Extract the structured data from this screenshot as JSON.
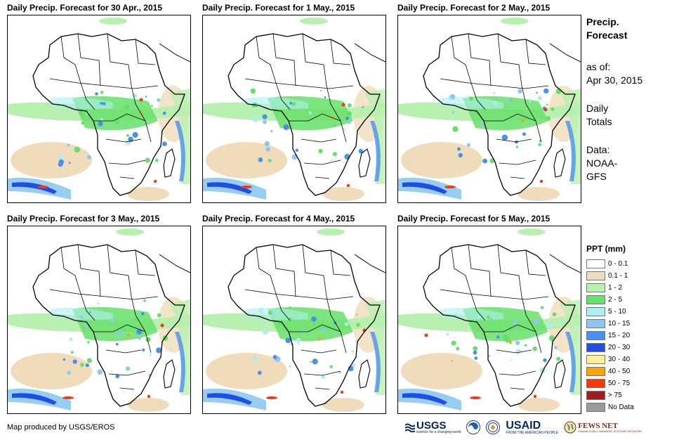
{
  "panels": [
    {
      "title": "Daily Precip. Forecast for 30 Apr., 2015"
    },
    {
      "title": "Daily Precip. Forecast for 1 May., 2015"
    },
    {
      "title": "Daily Precip. Forecast for 2 May., 2015"
    },
    {
      "title": "Daily Precip. Forecast for 3 May., 2015"
    },
    {
      "title": "Daily Precip. Forecast for 4 May., 2015"
    },
    {
      "title": "Daily Precip. Forecast for 5 May., 2015"
    }
  ],
  "sidebar": {
    "heading_line1": "Precip.",
    "heading_line2": "Forecast",
    "asof_label": "as of:",
    "asof_date": "Apr 30, 2015",
    "totals_line1": "Daily",
    "totals_line2": "Totals",
    "data_label": "Data:",
    "data_line1": "NOAA-",
    "data_line2": "GFS"
  },
  "legend": {
    "title": "PPT (mm)",
    "items": [
      {
        "label": "0 - 0.1",
        "color": "#ffffff"
      },
      {
        "label": "0.1 - 1",
        "color": "#f0dcba"
      },
      {
        "label": "1 - 2",
        "color": "#b8f0b0"
      },
      {
        "label": "2 - 5",
        "color": "#66e06a"
      },
      {
        "label": "5 - 10",
        "color": "#aeeef0"
      },
      {
        "label": "10 - 15",
        "color": "#8cc8f0"
      },
      {
        "label": "15 - 20",
        "color": "#4a90e8"
      },
      {
        "label": "20 - 30",
        "color": "#1f4ee6"
      },
      {
        "label": "30 - 40",
        "color": "#fff09c"
      },
      {
        "label": "40 - 50",
        "color": "#f7a600"
      },
      {
        "label": "50 - 75",
        "color": "#ee3a10"
      },
      {
        "label": "> 75",
        "color": "#a81a1a"
      },
      {
        "label": "No Data",
        "color": "#9a9a9a"
      }
    ]
  },
  "credit": "Map produced by USGS/EROS",
  "logos": {
    "usgs": "USGS",
    "usgs_tagline": "science for a changing world",
    "usaid": "USAID",
    "usaid_tagline": "FROM THE AMERICAN PEOPLE",
    "fews": "FEWS NET",
    "fews_tagline": "FAMINE EARLY WARNING SYSTEMS NETWORK"
  }
}
